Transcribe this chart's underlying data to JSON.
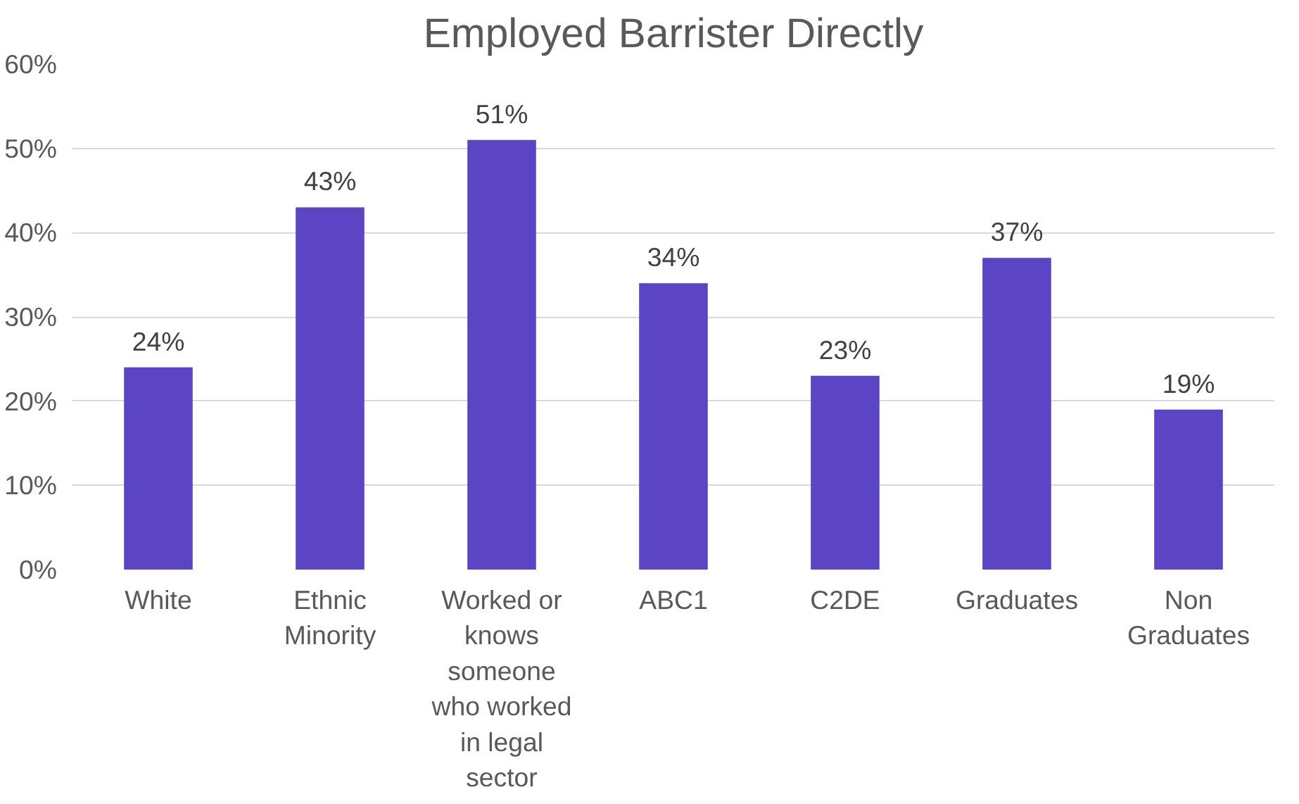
{
  "chart_data": {
    "type": "bar",
    "title": "Employed Barrister Directly",
    "categories": [
      "White",
      "Ethnic Minority",
      "Worked or knows someone who worked in legal sector",
      "ABC1",
      "C2DE",
      "Graduates",
      "Non Graduates"
    ],
    "values": [
      24,
      43,
      51,
      34,
      23,
      37,
      19
    ],
    "value_labels": [
      "24%",
      "43%",
      "51%",
      "34%",
      "23%",
      "37%",
      "19%"
    ],
    "color": "#5b45c4",
    "ylim": [
      0,
      60
    ],
    "yticks": [
      {
        "value": 0,
        "label": "0%"
      },
      {
        "value": 10,
        "label": "10%"
      },
      {
        "value": 20,
        "label": "20%"
      },
      {
        "value": 30,
        "label": "30%"
      },
      {
        "value": 40,
        "label": "40%"
      },
      {
        "value": 50,
        "label": "50%"
      },
      {
        "value": 60,
        "label": "60%"
      }
    ],
    "grid": "y"
  }
}
